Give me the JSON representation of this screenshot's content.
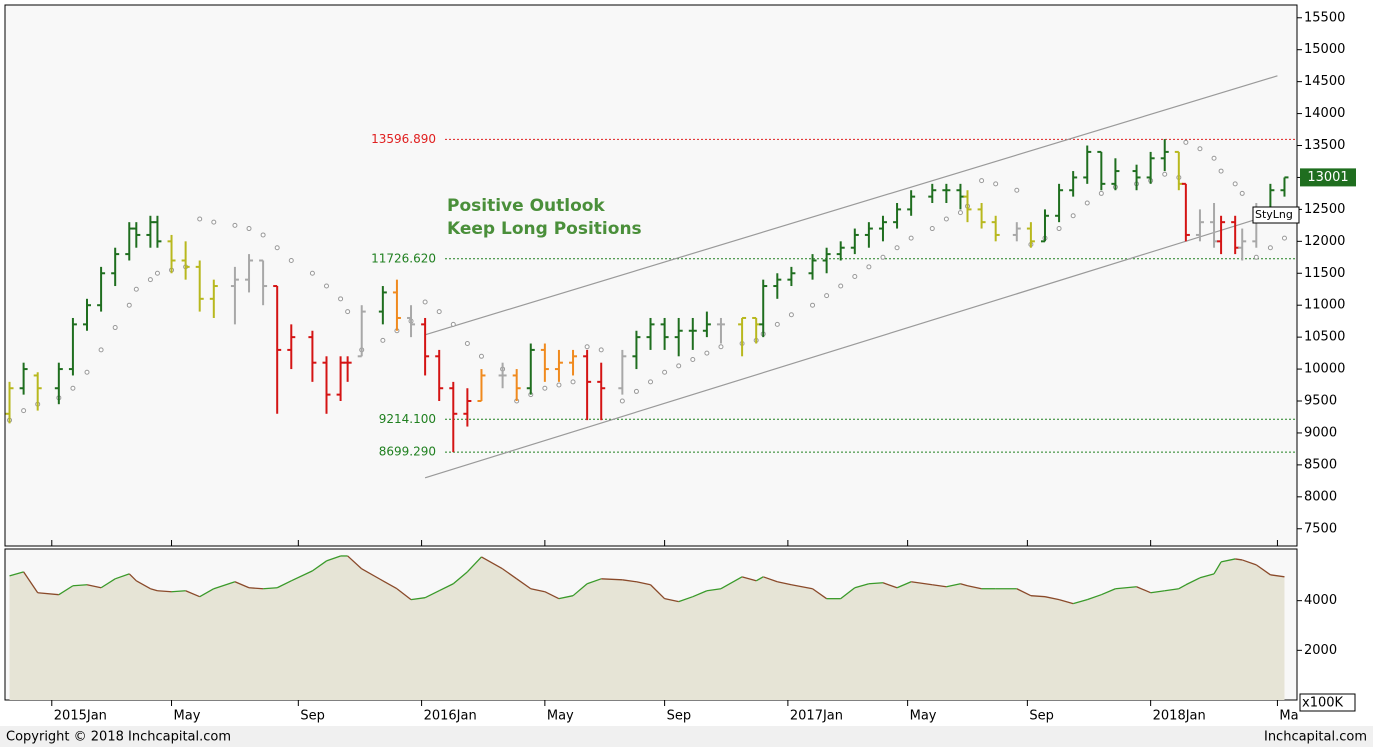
{
  "chart_data": {
    "type": "ohlc",
    "annotations": [
      "Positive Outlook",
      "Keep Long Positions"
    ],
    "tag": "StyLng",
    "copyright": "Copyright © 2018 Inchcapital.com",
    "site": "Inchcapital.com",
    "xlim": [
      -6.5,
      175.5
    ],
    "xticks": [
      {
        "value": 0,
        "label": "2015Jan"
      },
      {
        "value": 17,
        "label": "May"
      },
      {
        "value": 35,
        "label": "Sep"
      },
      {
        "value": 52.5,
        "label": "2016Jan"
      },
      {
        "value": 70,
        "label": "May"
      },
      {
        "value": 87,
        "label": "Sep"
      },
      {
        "value": 104.5,
        "label": "2017Jan"
      },
      {
        "value": 121.5,
        "label": "May"
      },
      {
        "value": 138.5,
        "label": "Sep"
      },
      {
        "value": 156,
        "label": "2018Jan"
      },
      {
        "value": 174,
        "label": "Ma"
      }
    ],
    "ylim": [
      7230,
      15700
    ],
    "yticks": [
      7500,
      8000,
      8500,
      9000,
      9500,
      10000,
      10500,
      11000,
      11500,
      12000,
      12500,
      13000,
      13500,
      14000,
      14500,
      15000,
      15500
    ],
    "x": [
      -6,
      -4,
      -2,
      1,
      3,
      5,
      7,
      9,
      11,
      12,
      14,
      15,
      17,
      19,
      21,
      23,
      26,
      28,
      30,
      32,
      34,
      37,
      39,
      41,
      42,
      44,
      47,
      49,
      51,
      53,
      55,
      57,
      59,
      61,
      64,
      66,
      68,
      70,
      72,
      74,
      76,
      78,
      81,
      83,
      85,
      87,
      89,
      91,
      93,
      95,
      98,
      100,
      101,
      103,
      105,
      108,
      110,
      112,
      114,
      116,
      118,
      120,
      122,
      125,
      127,
      129,
      130,
      132,
      134,
      137,
      139,
      141,
      143,
      145,
      147,
      149,
      151,
      154,
      156,
      158,
      160,
      161,
      163,
      165,
      166,
      168,
      169,
      171,
      173,
      175
    ],
    "open": [
      9300,
      9700,
      9900,
      9700,
      10000,
      10700,
      11000,
      11500,
      11800,
      12200,
      12100,
      12300,
      12000,
      11700,
      11600,
      11100,
      11300,
      11400,
      11700,
      11300,
      10300,
      10500,
      10100,
      9600,
      10100,
      10200,
      10900,
      11200,
      10800,
      10700,
      10200,
      9700,
      9300,
      9500,
      9900,
      9900,
      9700,
      10300,
      10000,
      10100,
      10200,
      9800,
      9700,
      10200,
      10500,
      10700,
      10500,
      10600,
      10600,
      10700,
      10700,
      10800,
      10700,
      11300,
      11400,
      11500,
      11700,
      11800,
      11900,
      12100,
      12200,
      12300,
      12500,
      12700,
      12800,
      12800,
      12700,
      12500,
      12300,
      12100,
      12200,
      12000,
      12400,
      12800,
      13000,
      13400,
      12900,
      13100,
      13000,
      13300,
      13400,
      12900,
      12100,
      12300,
      12000,
      12300,
      11900,
      12000,
      12500,
      12800
    ],
    "high": [
      9800,
      10100,
      9950,
      10100,
      10800,
      11100,
      11600,
      11900,
      12300,
      12300,
      12400,
      12400,
      12100,
      12000,
      11700,
      11400,
      11600,
      11800,
      11700,
      11300,
      10700,
      10600,
      10200,
      10200,
      10200,
      11000,
      11300,
      11400,
      11000,
      10800,
      10300,
      9800,
      9700,
      10000,
      10100,
      10000,
      10400,
      10400,
      10300,
      10300,
      10300,
      10100,
      10300,
      10600,
      10800,
      10800,
      10800,
      10800,
      10900,
      10800,
      10800,
      10800,
      11400,
      11500,
      11600,
      11800,
      11900,
      12000,
      12200,
      12300,
      12400,
      12600,
      12800,
      12900,
      12900,
      12900,
      12800,
      12600,
      12400,
      12300,
      12300,
      12500,
      12900,
      13100,
      13500,
      13400,
      13300,
      13200,
      13400,
      13600,
      13400,
      12900,
      12500,
      12600,
      12400,
      12400,
      12200,
      12600,
      12900,
      13000
    ],
    "low": [
      9150,
      9600,
      9350,
      9450,
      9900,
      10600,
      10900,
      11300,
      11700,
      11900,
      11900,
      11900,
      11500,
      11400,
      10900,
      10800,
      10700,
      11200,
      11000,
      9300,
      10000,
      9800,
      9300,
      9500,
      9800,
      10200,
      10700,
      10600,
      10500,
      9900,
      9500,
      8700,
      9100,
      9500,
      9700,
      9500,
      9600,
      9800,
      9800,
      9900,
      9200,
      9200,
      9600,
      10000,
      10300,
      10300,
      10200,
      10300,
      10500,
      10400,
      10200,
      10400,
      10500,
      11100,
      11300,
      11400,
      11500,
      11700,
      11800,
      11900,
      12000,
      12200,
      12400,
      12600,
      12600,
      12500,
      12300,
      12200,
      12000,
      12000,
      11900,
      12000,
      12300,
      12700,
      12900,
      12800,
      12800,
      12800,
      12900,
      13100,
      12800,
      12000,
      12000,
      11900,
      11800,
      11800,
      11700,
      11900,
      12400,
      12700
    ],
    "close": [
      9700,
      10000,
      9700,
      10000,
      10700,
      11000,
      11500,
      11800,
      12200,
      12100,
      12300,
      12000,
      11700,
      11600,
      11100,
      11300,
      11400,
      11700,
      11300,
      10300,
      10500,
      10100,
      9600,
      10100,
      10100,
      10900,
      11200,
      10800,
      10700,
      10200,
      9700,
      9300,
      9500,
      9900,
      9900,
      9700,
      10300,
      10000,
      10100,
      10200,
      9800,
      9700,
      10200,
      10500,
      10700,
      10500,
      10600,
      10600,
      10700,
      10700,
      10800,
      10700,
      11300,
      11400,
      11500,
      11700,
      11800,
      11900,
      12100,
      12200,
      12300,
      12500,
      12700,
      12800,
      12800,
      12700,
      12500,
      12300,
      12100,
      12200,
      12000,
      12400,
      12800,
      13000,
      13400,
      12900,
      13100,
      13000,
      13300,
      13400,
      12900,
      12100,
      12300,
      12000,
      12300,
      11900,
      12000,
      12500,
      12800,
      13001
    ],
    "bar_colors": [
      "#b8b81e",
      "#1f6e1f",
      "#b8b81e",
      "#1f6e1f",
      "#1f6e1f",
      "#1f6e1f",
      "#1f6e1f",
      "#1f6e1f",
      "#1f6e1f",
      "#1f6e1f",
      "#1f6e1f",
      "#1f6e1f",
      "#b8b81e",
      "#b8b81e",
      "#b8b81e",
      "#b8b81e",
      "#a8a8a8",
      "#a8a8a8",
      "#a8a8a8",
      "#d41414",
      "#d41414",
      "#d41414",
      "#d41414",
      "#d41414",
      "#d41414",
      "#a8a8a8",
      "#1f6e1f",
      "#f08a1e",
      "#a8a8a8",
      "#d41414",
      "#d41414",
      "#d41414",
      "#d41414",
      "#f08a1e",
      "#a8a8a8",
      "#f08a1e",
      "#1f6e1f",
      "#f08a1e",
      "#f08a1e",
      "#f08a1e",
      "#d41414",
      "#d41414",
      "#a8a8a8",
      "#1f6e1f",
      "#1f6e1f",
      "#1f6e1f",
      "#1f6e1f",
      "#1f6e1f",
      "#1f6e1f",
      "#a8a8a8",
      "#b8b81e",
      "#b8b81e",
      "#1f6e1f",
      "#1f6e1f",
      "#1f6e1f",
      "#1f6e1f",
      "#1f6e1f",
      "#1f6e1f",
      "#1f6e1f",
      "#1f6e1f",
      "#1f6e1f",
      "#1f6e1f",
      "#1f6e1f",
      "#1f6e1f",
      "#1f6e1f",
      "#1f6e1f",
      "#b8b81e",
      "#b8b81e",
      "#b8b81e",
      "#a8a8a8",
      "#b8b81e",
      "#1f6e1f",
      "#1f6e1f",
      "#1f6e1f",
      "#1f6e1f",
      "#1f6e1f",
      "#1f6e1f",
      "#1f6e1f",
      "#1f6e1f",
      "#1f6e1f",
      "#b8b81e",
      "#d41414",
      "#a8a8a8",
      "#a8a8a8",
      "#d41414",
      "#d41414",
      "#a8a8a8",
      "#a8a8a8",
      "#1f6e1f",
      "#1f6e1f"
    ],
    "sar": [
      9200,
      9350,
      9450,
      9550,
      9700,
      9950,
      10300,
      10650,
      11000,
      11250,
      11400,
      11500,
      11550,
      11600,
      12350,
      12300,
      12250,
      12200,
      12100,
      11900,
      11700,
      11500,
      11300,
      11100,
      10900,
      10300,
      10450,
      10600,
      10750,
      11050,
      10900,
      10700,
      10400,
      10200,
      10000,
      9500,
      9600,
      9700,
      9750,
      9800,
      10350,
      10300,
      9500,
      9650,
      9800,
      9950,
      10050,
      10150,
      10250,
      10350,
      10400,
      10450,
      10550,
      10700,
      10850,
      11000,
      11150,
      11300,
      11450,
      11600,
      11750,
      11900,
      12050,
      12200,
      12350,
      12450,
      12550,
      12950,
      12900,
      12800,
      11950,
      12050,
      12200,
      12400,
      12600,
      12750,
      12850,
      12900,
      12950,
      13050,
      13000,
      13550,
      13450,
      13300,
      13100,
      12900,
      12750,
      11750,
      11900,
      12050
    ],
    "levels": [
      {
        "value": 13596.89,
        "label": "13596.890",
        "color": "#e02020"
      },
      {
        "value": 11726.62,
        "label": "11726.620",
        "color": "#208020"
      },
      {
        "value": 9214.1,
        "label": "9214.100",
        "color": "#208020"
      },
      {
        "value": 8699.29,
        "label": "8699.290",
        "color": "#208020"
      }
    ],
    "channel": [
      {
        "x": [
          53,
          174
        ],
        "y": [
          10537,
          14591
        ]
      },
      {
        "x": [
          53,
          174
        ],
        "y": [
          8298,
          12447
        ]
      }
    ],
    "volume": {
      "unit": "x100K",
      "ylim": [
        0,
        6080
      ],
      "yticks": [
        2000,
        4000
      ],
      "values": [
        5000,
        5160,
        4320,
        4240,
        4600,
        4640,
        4520,
        4880,
        5080,
        4800,
        4480,
        4400,
        4360,
        4400,
        4160,
        4480,
        4760,
        4520,
        4480,
        4520,
        4800,
        5200,
        5600,
        5800,
        5800,
        5280,
        4800,
        4480,
        4040,
        4120,
        4400,
        4680,
        5160,
        5760,
        5280,
        4880,
        4480,
        4360,
        4080,
        4200,
        4680,
        4880,
        4840,
        4760,
        4640,
        4080,
        3960,
        4160,
        4400,
        4480,
        4960,
        4800,
        4960,
        4760,
        4640,
        4480,
        4080,
        4080,
        4520,
        4680,
        4720,
        4520,
        4760,
        4640,
        4560,
        4680,
        4600,
        4480,
        4480,
        4480,
        4200,
        4160,
        4040,
        3880,
        4040,
        4240,
        4480,
        4560,
        4320,
        4400,
        4480,
        4640,
        4920,
        5080,
        5560,
        5680,
        5640,
        5440,
        5040,
        4960
      ]
    }
  }
}
